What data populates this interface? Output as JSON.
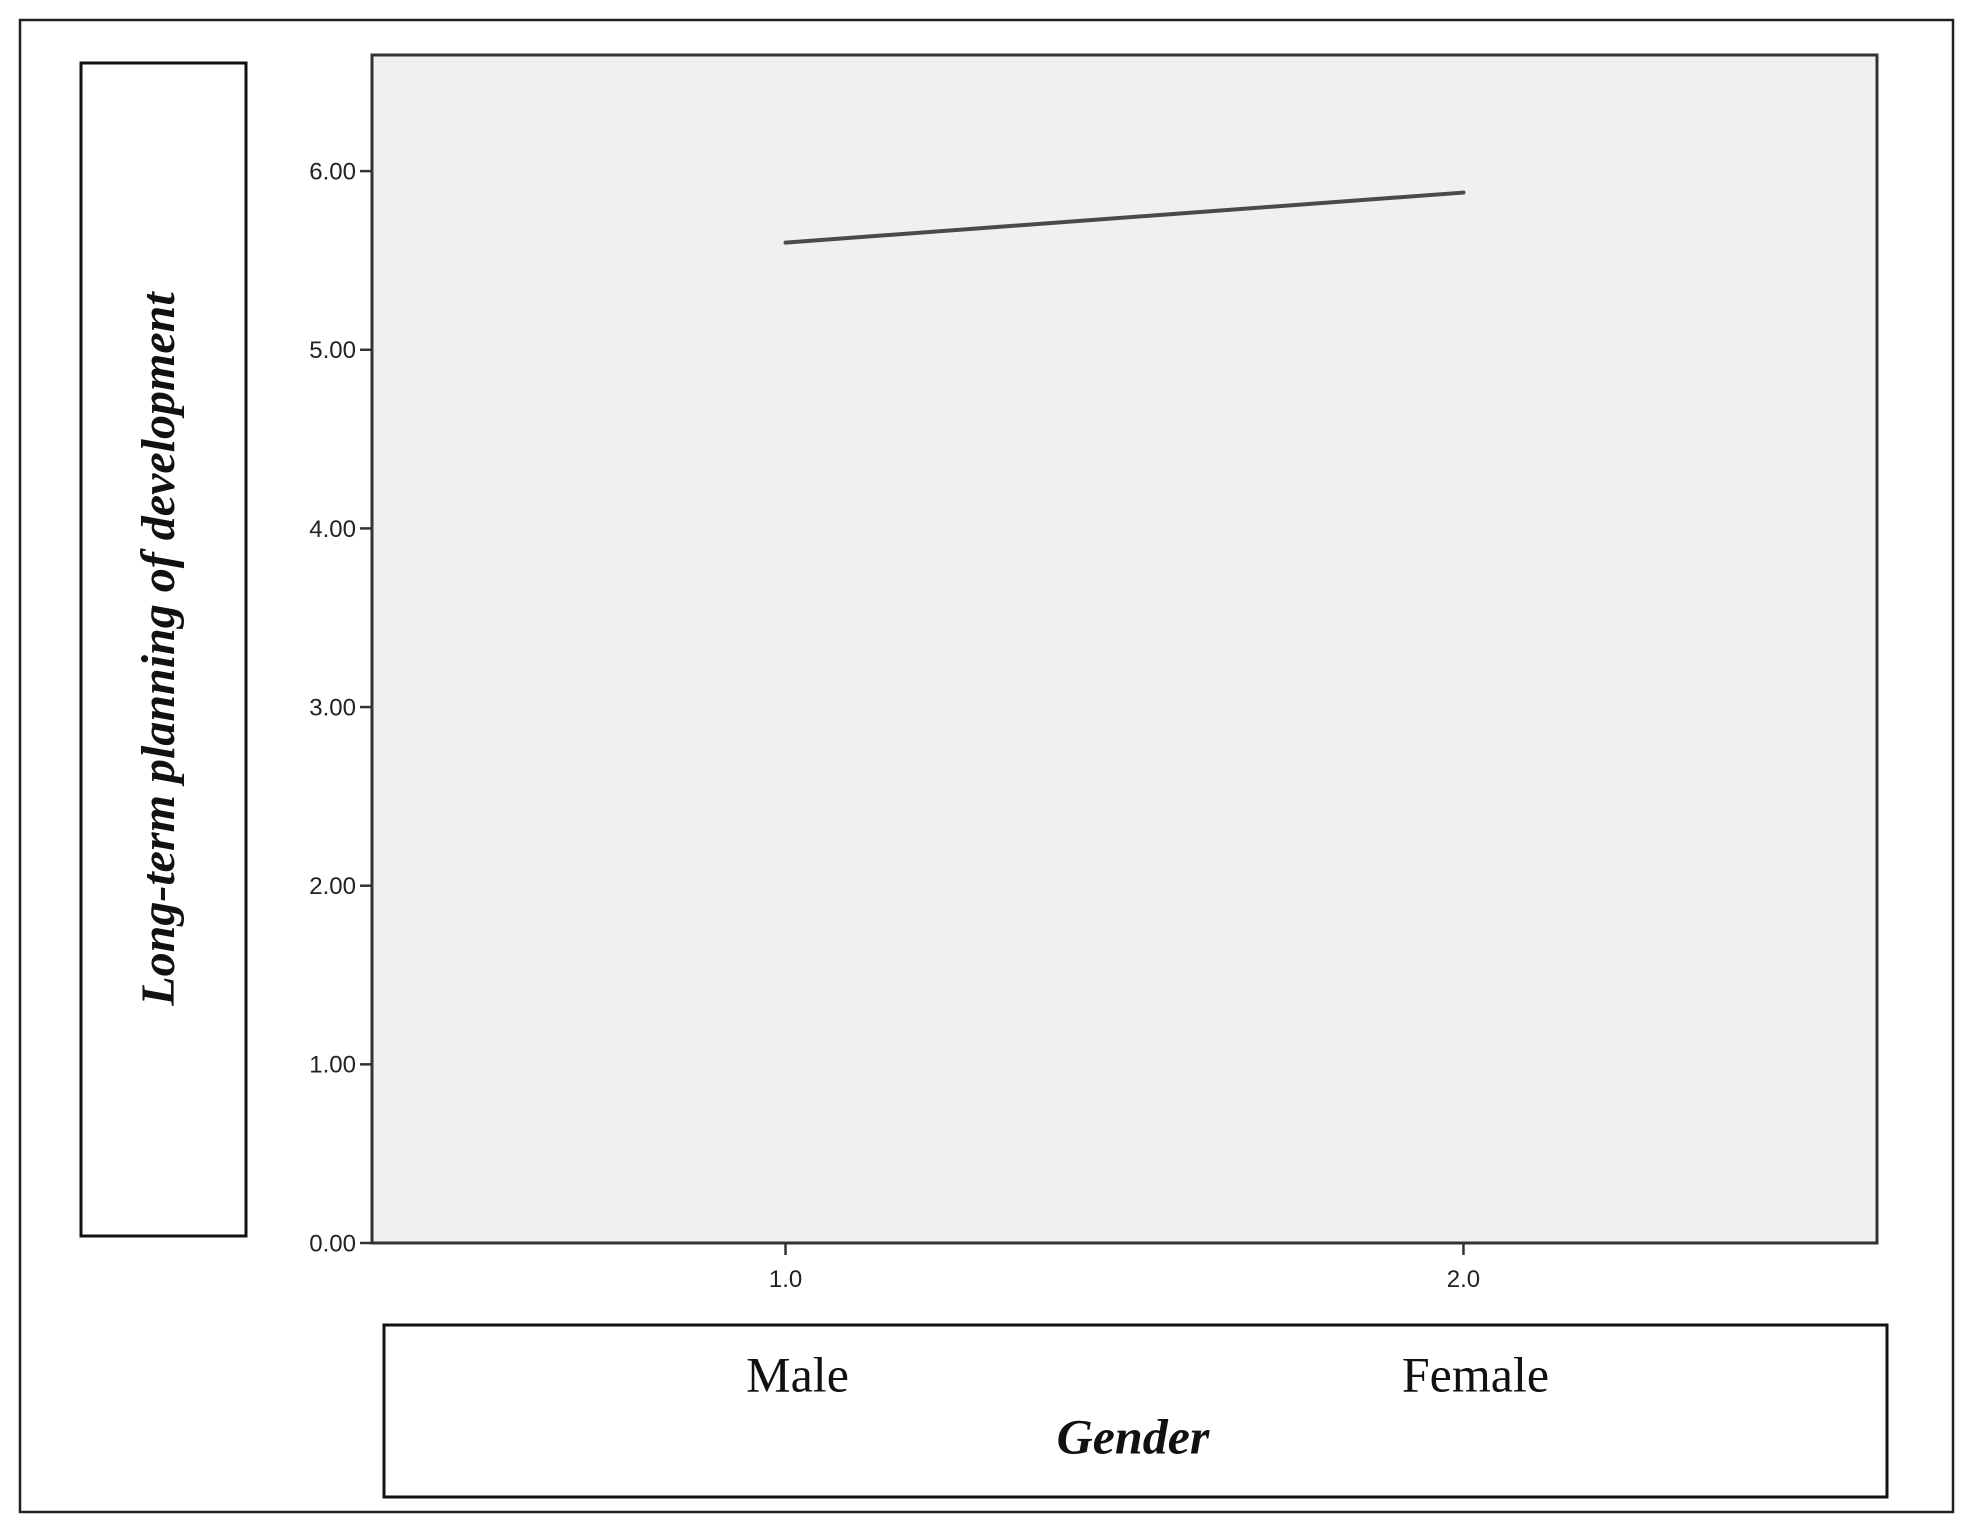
{
  "chart_data": {
    "type": "line",
    "title": "",
    "ylabel": "Long-term planning of development",
    "xlabel": "Gender",
    "group_labels": [
      "Male",
      "Female"
    ],
    "x_ticks": [
      "1.0",
      "2.0"
    ],
    "y_ticks": [
      "0.00",
      "1.00",
      "2.00",
      "3.00",
      "4.00",
      "5.00",
      "6.00"
    ],
    "x": [
      1.0,
      2.0
    ],
    "series": [
      {
        "values": [
          5.6,
          5.88
        ]
      }
    ],
    "xlim": [
      0.39,
      2.61
    ],
    "ylim": [
      0,
      6.65
    ],
    "grid": false,
    "legend": "none",
    "colors": {
      "plot_background": "#f0f0f0",
      "line": "#4a4a4a",
      "frame": "#333333"
    }
  }
}
